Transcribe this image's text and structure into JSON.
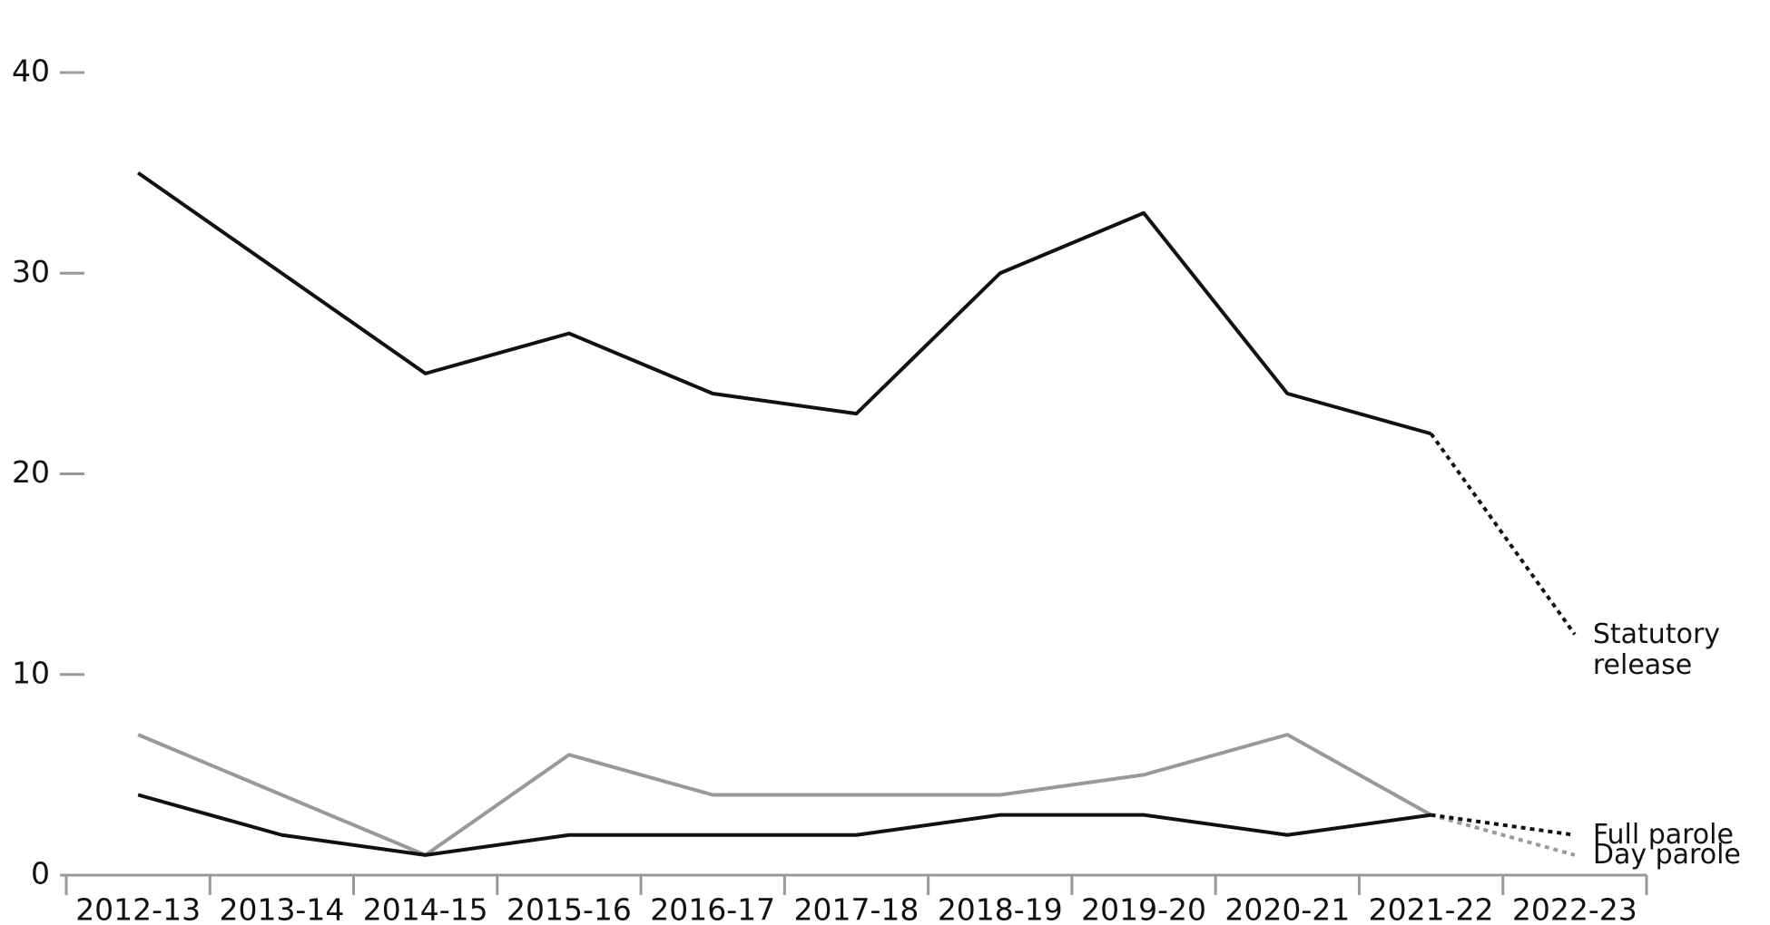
{
  "chart_data": {
    "type": "line",
    "categories": [
      "2012-13",
      "2013-14",
      "2014-15",
      "2015-16",
      "2016-17",
      "2017-18",
      "2018-19",
      "2019-20",
      "2020-21",
      "2021-22",
      "2022-23"
    ],
    "series": [
      {
        "name": "Statutory release",
        "color": "#111111",
        "values": [
          35,
          30,
          25,
          27,
          24,
          23,
          30,
          33,
          24,
          22,
          12
        ]
      },
      {
        "name": "Day parole",
        "color": "#999999",
        "values": [
          7,
          4,
          1,
          6,
          4,
          4,
          4,
          5,
          7,
          3,
          1
        ]
      },
      {
        "name": "Full parole",
        "color": "#111111",
        "values": [
          4,
          2,
          1,
          2,
          2,
          2,
          3,
          3,
          2,
          3,
          2
        ]
      }
    ],
    "dotted_last_segment": true,
    "ylim": [
      0,
      40
    ],
    "yticks": [
      0,
      10,
      20,
      30,
      40
    ]
  }
}
